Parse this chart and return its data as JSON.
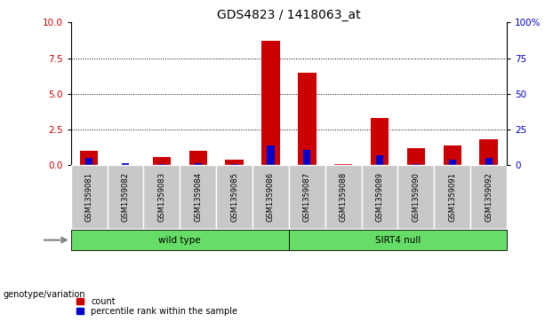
{
  "title": "GDS4823 / 1418063_at",
  "samples": [
    "GSM1359081",
    "GSM1359082",
    "GSM1359083",
    "GSM1359084",
    "GSM1359085",
    "GSM1359086",
    "GSM1359087",
    "GSM1359088",
    "GSM1359089",
    "GSM1359090",
    "GSM1359091",
    "GSM1359092"
  ],
  "count_values": [
    1.0,
    0.05,
    0.6,
    1.0,
    0.4,
    8.7,
    6.5,
    0.1,
    3.3,
    1.2,
    1.4,
    1.8
  ],
  "percentile_values": [
    5.0,
    1.5,
    1.0,
    1.5,
    1.0,
    14.0,
    11.0,
    0.5,
    7.0,
    1.0,
    4.0,
    5.0
  ],
  "ylim_left": [
    0,
    10
  ],
  "ylim_right": [
    0,
    100
  ],
  "yticks_left": [
    0,
    2.5,
    5,
    7.5,
    10
  ],
  "yticks_right": [
    0,
    25,
    50,
    75,
    100
  ],
  "groups": [
    {
      "label": "wild type",
      "start": 0,
      "end": 5
    },
    {
      "label": "SIRT4 null",
      "start": 6,
      "end": 11
    }
  ],
  "group_label_prefix": "genotype/variation",
  "count_color": "#CC0000",
  "percentile_color": "#0000CC",
  "bar_width": 0.5,
  "percentile_bar_width": 0.2,
  "plot_bg_color": "#FFFFFF",
  "sample_panel_color": "#C8C8C8",
  "green_color": "#66DD66",
  "legend_count": "count",
  "legend_percentile": "percentile rank within the sample",
  "title_fontsize": 10,
  "tick_fontsize": 7.5,
  "label_fontsize": 7.5
}
